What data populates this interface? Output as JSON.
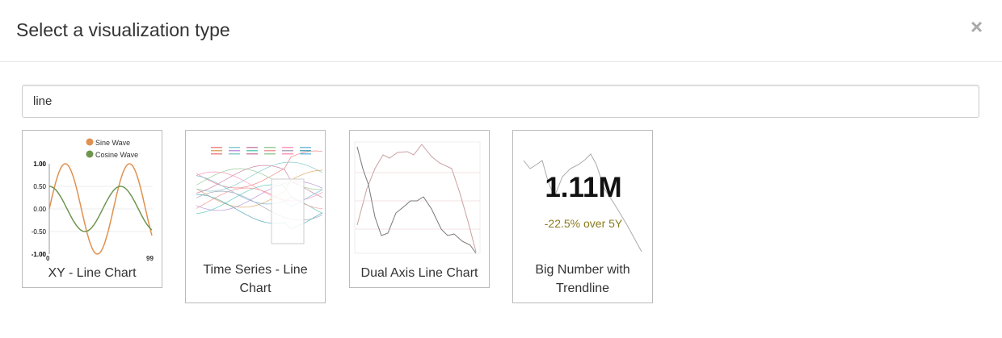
{
  "modal": {
    "title": "Select a visualization type",
    "close_icon": "close-icon"
  },
  "search": {
    "value": "line",
    "placeholder": ""
  },
  "cards": [
    {
      "label": "XY - Line Chart",
      "thumb": {
        "legend": [
          "Sine Wave",
          "Cosine Wave"
        ],
        "y_ticks": [
          "1.00",
          "0.50",
          "0.00",
          "-0.50",
          "-1.00"
        ],
        "x_ticks": [
          "0",
          "99"
        ],
        "colors": [
          "#e0914f",
          "#6f9650"
        ]
      }
    },
    {
      "label": "Time Series - Line Chart"
    },
    {
      "label": "Dual Axis Line Chart"
    },
    {
      "label": "Big Number with Trendline",
      "thumb": {
        "value": "1.11M",
        "subtitle": "-22.5% over 5Y",
        "subtitle_color": "#8a7a1e"
      }
    }
  ]
}
